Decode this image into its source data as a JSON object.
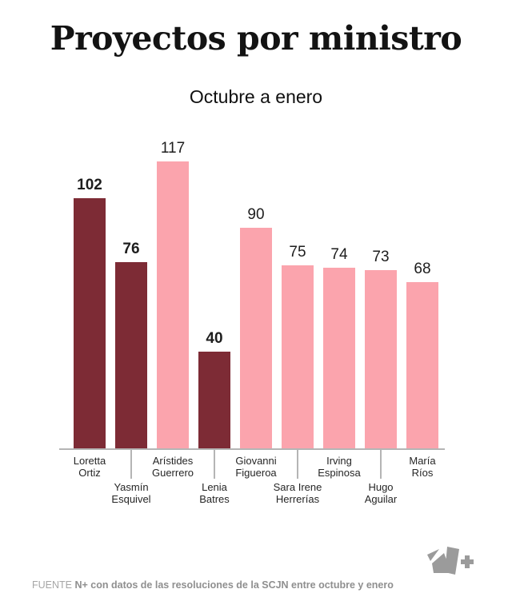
{
  "title": "Proyectos por ministro",
  "subtitle": "Octubre a enero",
  "footer": {
    "prefix": "FUENTE",
    "text": "N+ con datos de las resoluciones de la SCJN entre octubre y enero"
  },
  "colors": {
    "dark_red": "#7d2b35",
    "pink": "#fba4ad",
    "axis_gray": "#b5b5b5",
    "footer_gray": "#8f8f8f",
    "logo_gray": "#9b9b9b"
  },
  "chart_data": {
    "type": "bar",
    "title": "Proyectos por ministro",
    "subtitle": "Octubre a enero",
    "categories": [
      "Loretta Ortiz",
      "Yasmín Esquivel",
      "Arístides Guerrero",
      "Lenia Batres",
      "Giovanni Figueroa",
      "Sara Irene Herrerías",
      "Irving Espinosa",
      "Hugo Aguilar",
      "María Ríos"
    ],
    "values": [
      102,
      76,
      117,
      40,
      90,
      75,
      74,
      73,
      68
    ],
    "ylim": [
      0,
      120
    ],
    "grid": false,
    "legend": null,
    "bars": [
      {
        "name": "Loretta Ortiz",
        "name_lines": [
          "Loretta",
          "Ortiz"
        ],
        "value": 102,
        "color": "#7d2b35",
        "bold_value": true,
        "label_row": 1
      },
      {
        "name": "Yasmín Esquivel",
        "name_lines": [
          "Yasmín",
          "Esquivel"
        ],
        "value": 76,
        "color": "#7d2b35",
        "bold_value": true,
        "label_row": 2
      },
      {
        "name": "Arístides Guerrero",
        "name_lines": [
          "Arístides",
          "Guerrero"
        ],
        "value": 117,
        "color": "#fba4ad",
        "bold_value": false,
        "label_row": 1
      },
      {
        "name": "Lenia Batres",
        "name_lines": [
          "Lenia",
          "Batres"
        ],
        "value": 40,
        "color": "#7d2b35",
        "bold_value": true,
        "label_row": 2
      },
      {
        "name": "Giovanni Figueroa",
        "name_lines": [
          "Giovanni",
          "Figueroa"
        ],
        "value": 90,
        "color": "#fba4ad",
        "bold_value": false,
        "label_row": 1
      },
      {
        "name": "Sara Irene Herrerías",
        "name_lines": [
          "Sara Irene",
          "Herrerías"
        ],
        "value": 75,
        "color": "#fba4ad",
        "bold_value": false,
        "label_row": 2
      },
      {
        "name": "Irving Espinosa",
        "name_lines": [
          "Irving",
          "Espinosa"
        ],
        "value": 74,
        "color": "#fba4ad",
        "bold_value": false,
        "label_row": 1
      },
      {
        "name": "Hugo Aguilar",
        "name_lines": [
          "Hugo",
          "Aguilar"
        ],
        "value": 73,
        "color": "#fba4ad",
        "bold_value": false,
        "label_row": 2
      },
      {
        "name": "María Ríos",
        "name_lines": [
          "María",
          "Ríos"
        ],
        "value": 68,
        "color": "#fba4ad",
        "bold_value": false,
        "label_row": 1
      }
    ]
  }
}
